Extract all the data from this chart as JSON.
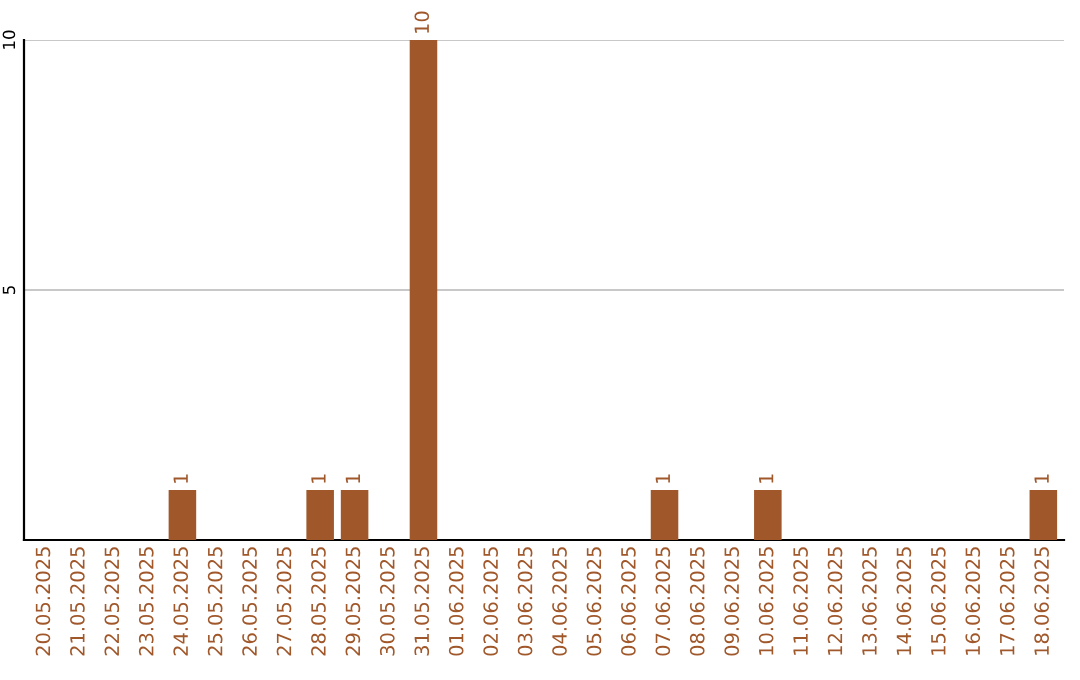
{
  "chart_data": {
    "type": "bar",
    "categories": [
      "20.05.2025",
      "21.05.2025",
      "22.05.2025",
      "23.05.2025",
      "24.05.2025",
      "25.05.2025",
      "26.05.2025",
      "27.05.2025",
      "28.05.2025",
      "29.05.2025",
      "30.05.2025",
      "31.05.2025",
      "01.06.2025",
      "02.06.2025",
      "03.06.2025",
      "04.06.2025",
      "05.06.2025",
      "06.06.2025",
      "07.06.2025",
      "08.06.2025",
      "09.06.2025",
      "10.06.2025",
      "11.06.2025",
      "12.06.2025",
      "13.06.2025",
      "14.06.2025",
      "15.06.2025",
      "16.06.2025",
      "17.06.2025",
      "18.06.2025"
    ],
    "values": [
      0,
      0,
      0,
      0,
      1,
      0,
      0,
      0,
      1,
      1,
      0,
      10,
      0,
      0,
      0,
      0,
      0,
      0,
      1,
      0,
      0,
      1,
      0,
      0,
      0,
      0,
      0,
      0,
      0,
      1
    ],
    "value_labels": [
      null,
      null,
      null,
      null,
      "1",
      null,
      null,
      null,
      "1",
      "1",
      null,
      "10",
      null,
      null,
      null,
      null,
      null,
      null,
      "1",
      null,
      null,
      "1",
      null,
      null,
      null,
      null,
      null,
      null,
      null,
      "1"
    ],
    "color": "#a0572a",
    "ylim": [
      0,
      10
    ],
    "yticks": [
      5,
      10
    ],
    "grid": "y"
  }
}
